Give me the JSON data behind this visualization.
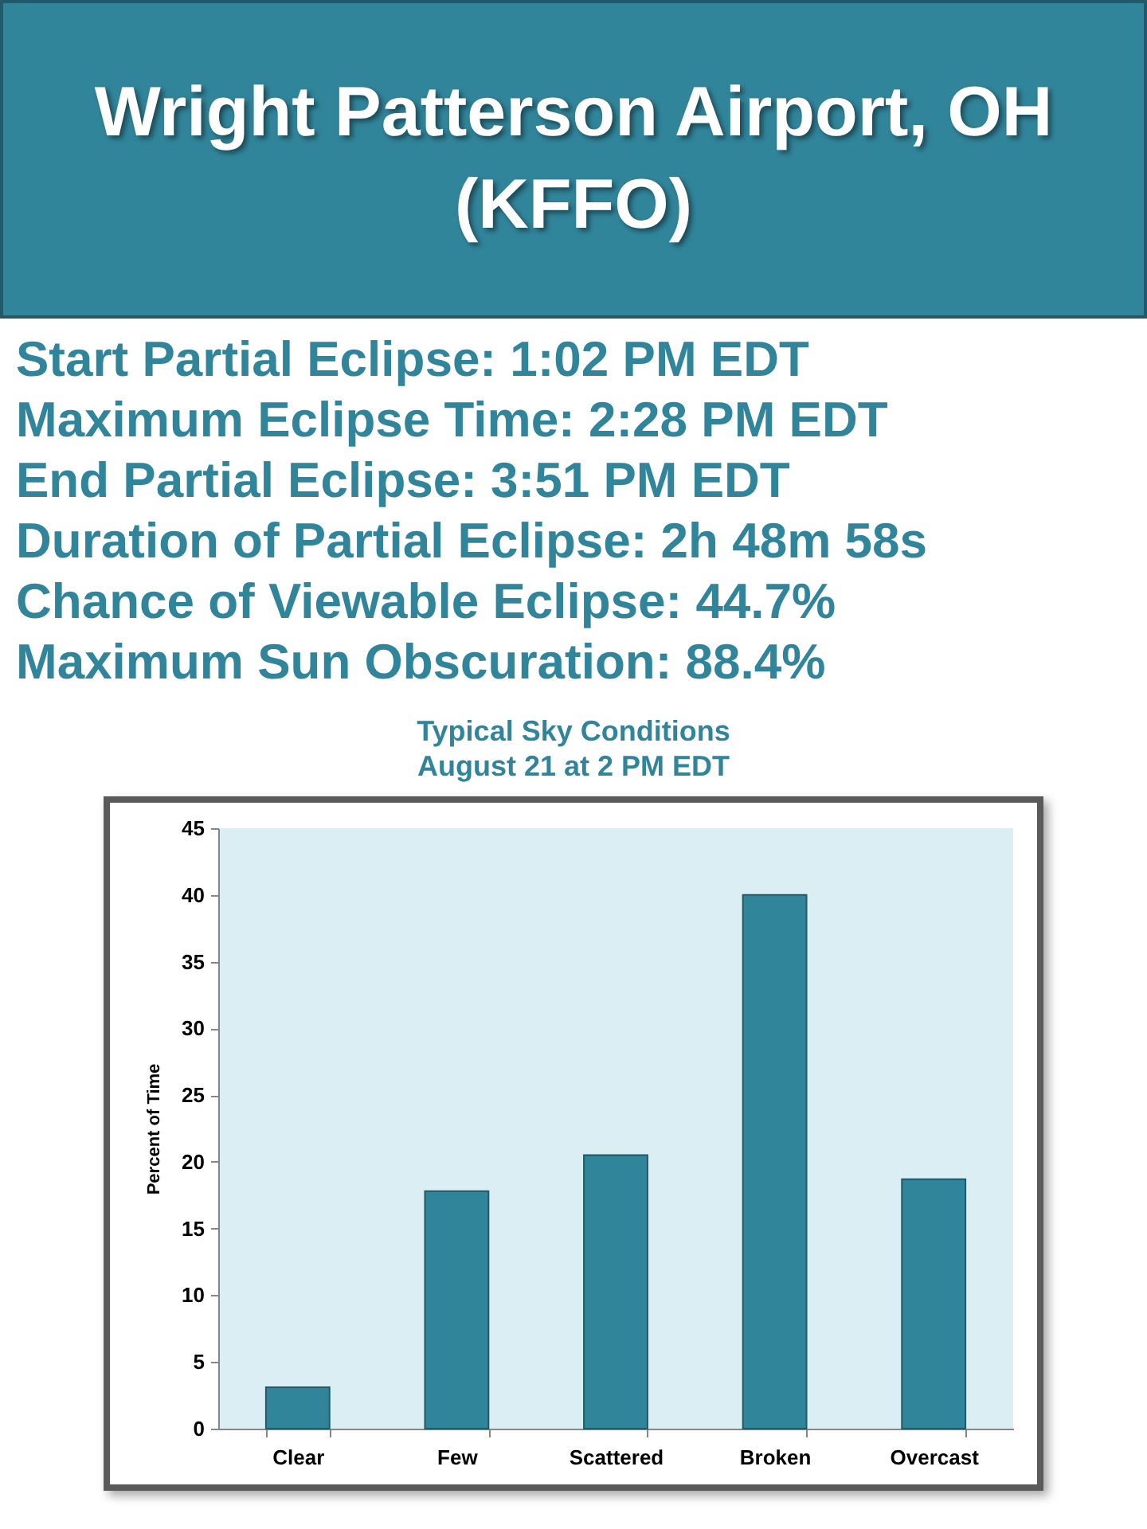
{
  "chart_data": {
    "type": "bar",
    "title": "Wright Patterson Airport, OH (KFFO)",
    "annotations": [
      "Start Partial Eclipse: 1:02 PM EDT",
      "Maximum Eclipse Time: 2:28 PM EDT",
      "End Partial Eclipse: 3:51 PM EDT",
      "Duration of Partial Eclipse: 2h 48m 58s",
      "Chance of Viewable Eclipse: 44.7%",
      "Maximum Sun Obscuration: 88.4%"
    ],
    "subtitle": "Typical Sky Conditions August 21 at 2 PM EDT",
    "categories": [
      "Clear",
      "Few",
      "Scattered",
      "Broken",
      "Overcast"
    ],
    "values": [
      3.1,
      17.8,
      20.5,
      40.0,
      18.7
    ],
    "color": "#31859b",
    "ylabel": "Percent of Time",
    "ylim": [
      0,
      45
    ],
    "yticks": [
      0,
      5,
      10,
      15,
      20,
      25,
      30,
      35,
      40,
      45
    ]
  }
}
